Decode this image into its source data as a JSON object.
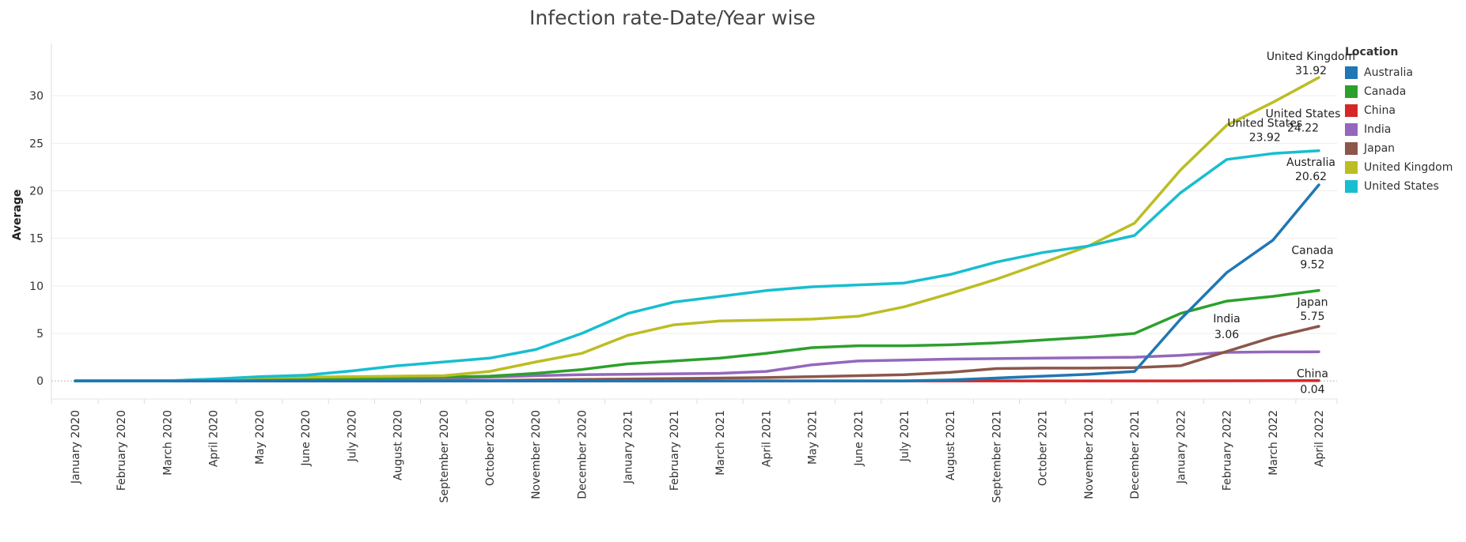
{
  "chart_data": {
    "type": "line",
    "title": "Infection rate-Date/Year wise",
    "ylabel": "Average",
    "xlabel": "",
    "ylim": [
      -1.9,
      35.5
    ],
    "yticks": [
      0,
      5,
      10,
      15,
      20,
      25,
      30
    ],
    "categories": [
      "January 2020",
      "February 2020",
      "March 2020",
      "April 2020",
      "May 2020",
      "June 2020",
      "July 2020",
      "August 2020",
      "September 2020",
      "October 2020",
      "November 2020",
      "December 2020",
      "January 2021",
      "February 2021",
      "March 2021",
      "April 2021",
      "May 2021",
      "June 2021",
      "July 2021",
      "August 2021",
      "September 2021",
      "October 2021",
      "November 2021",
      "December 2021",
      "January 2022",
      "February 2022",
      "March 2022",
      "April 2022"
    ],
    "legend": {
      "title": "Location",
      "placement": "right"
    },
    "grid": true,
    "series": [
      {
        "name": "Australia",
        "color": "#1f77b4",
        "values": [
          0,
          0,
          0,
          0,
          0,
          0,
          0,
          0,
          0,
          0,
          0,
          0,
          0,
          0,
          0,
          0,
          0,
          0,
          0,
          0.1,
          0.3,
          0.5,
          0.7,
          1.0,
          6.5,
          11.4,
          14.8,
          20.62
        ],
        "end_label": {
          "name": "Australia",
          "value": "20.62"
        }
      },
      {
        "name": "Canada",
        "color": "#2ca02c",
        "values": [
          0,
          0,
          0,
          0.1,
          0.2,
          0.25,
          0.3,
          0.35,
          0.4,
          0.5,
          0.8,
          1.2,
          1.8,
          2.1,
          2.4,
          2.9,
          3.5,
          3.7,
          3.7,
          3.8,
          4.0,
          4.3,
          4.6,
          5.0,
          7.1,
          8.4,
          8.9,
          9.52
        ],
        "end_label": {
          "name": "Canada",
          "value": "9.52"
        }
      },
      {
        "name": "China",
        "color": "#d62728",
        "values": [
          0,
          0,
          0,
          0,
          0,
          0,
          0,
          0,
          0,
          0,
          0,
          0,
          0,
          0,
          0,
          0,
          0,
          0,
          0,
          0,
          0,
          0,
          0,
          0,
          0,
          0.01,
          0.02,
          0.04
        ],
        "end_label": {
          "name": "China",
          "value": "0.04"
        }
      },
      {
        "name": "India",
        "color": "#9467bd",
        "values": [
          0,
          0,
          0,
          0,
          0,
          0,
          0.1,
          0.15,
          0.25,
          0.4,
          0.55,
          0.65,
          0.7,
          0.75,
          0.8,
          1.0,
          1.7,
          2.1,
          2.2,
          2.3,
          2.35,
          2.4,
          2.45,
          2.5,
          2.7,
          3.0,
          3.05,
          3.06
        ],
        "end_label": {
          "name": "India",
          "value": "3.06"
        }
      },
      {
        "name": "Japan",
        "color": "#8c564b",
        "values": [
          0,
          0,
          0,
          0,
          0,
          0,
          0,
          0,
          0,
          0.05,
          0.1,
          0.15,
          0.2,
          0.25,
          0.3,
          0.35,
          0.45,
          0.55,
          0.65,
          0.9,
          1.3,
          1.35,
          1.35,
          1.4,
          1.6,
          3.1,
          4.6,
          5.75
        ],
        "end_label": {
          "name": "Japan",
          "value": "5.75"
        }
      },
      {
        "name": "United Kingdom",
        "color": "#bcbd22",
        "values": [
          0,
          0,
          0,
          0.2,
          0.35,
          0.4,
          0.45,
          0.5,
          0.55,
          1.0,
          2.0,
          2.9,
          4.8,
          5.9,
          6.3,
          6.4,
          6.5,
          6.8,
          7.8,
          9.2,
          10.7,
          12.4,
          14.2,
          16.6,
          22.2,
          26.9,
          29.3,
          31.92
        ],
        "end_label": {
          "name": "United Kingdom",
          "value": "31.92"
        }
      },
      {
        "name": "United States",
        "color": "#17becf",
        "values": [
          0,
          0,
          0,
          0.2,
          0.45,
          0.6,
          1.05,
          1.6,
          2.0,
          2.4,
          3.3,
          5.0,
          7.1,
          8.3,
          8.9,
          9.5,
          9.9,
          10.1,
          10.3,
          11.2,
          12.5,
          13.5,
          14.2,
          15.3,
          19.8,
          23.3,
          23.92,
          24.22
        ],
        "end_label": {
          "name": "United States",
          "value": "24.22"
        },
        "point_label": {
          "name": "United States",
          "value": "23.92",
          "index": 26
        }
      }
    ]
  }
}
